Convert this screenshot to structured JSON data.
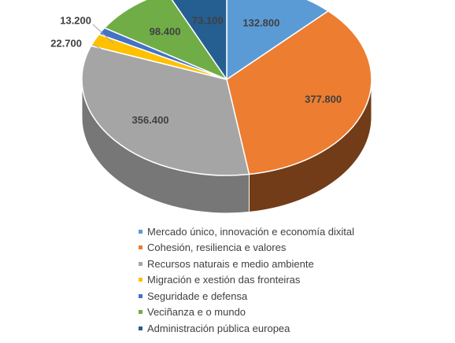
{
  "chart_data": {
    "type": "pie",
    "style": "3d",
    "title": "",
    "legend_position": "bottom",
    "categories": [
      "Mercado único, innovación e economía dixital",
      "Cohesión, resiliencia e valores",
      "Recursos naturais e medio ambiente",
      "Migración e xestión das fronteiras",
      "Seguridade e defensa",
      "Veciñanza e o mundo",
      "Administración pública europea"
    ],
    "values": [
      132.8,
      377.8,
      356.4,
      22.7,
      13.2,
      98.4,
      73.1
    ],
    "value_labels": [
      "132.800",
      "377.800",
      "356.400",
      "22.700",
      "13.200",
      "98.400",
      "73.100"
    ],
    "colors": [
      "#5B9BD5",
      "#ED7D31",
      "#A5A5A5",
      "#FFC000",
      "#4472C4",
      "#70AD47",
      "#255E91"
    ]
  }
}
